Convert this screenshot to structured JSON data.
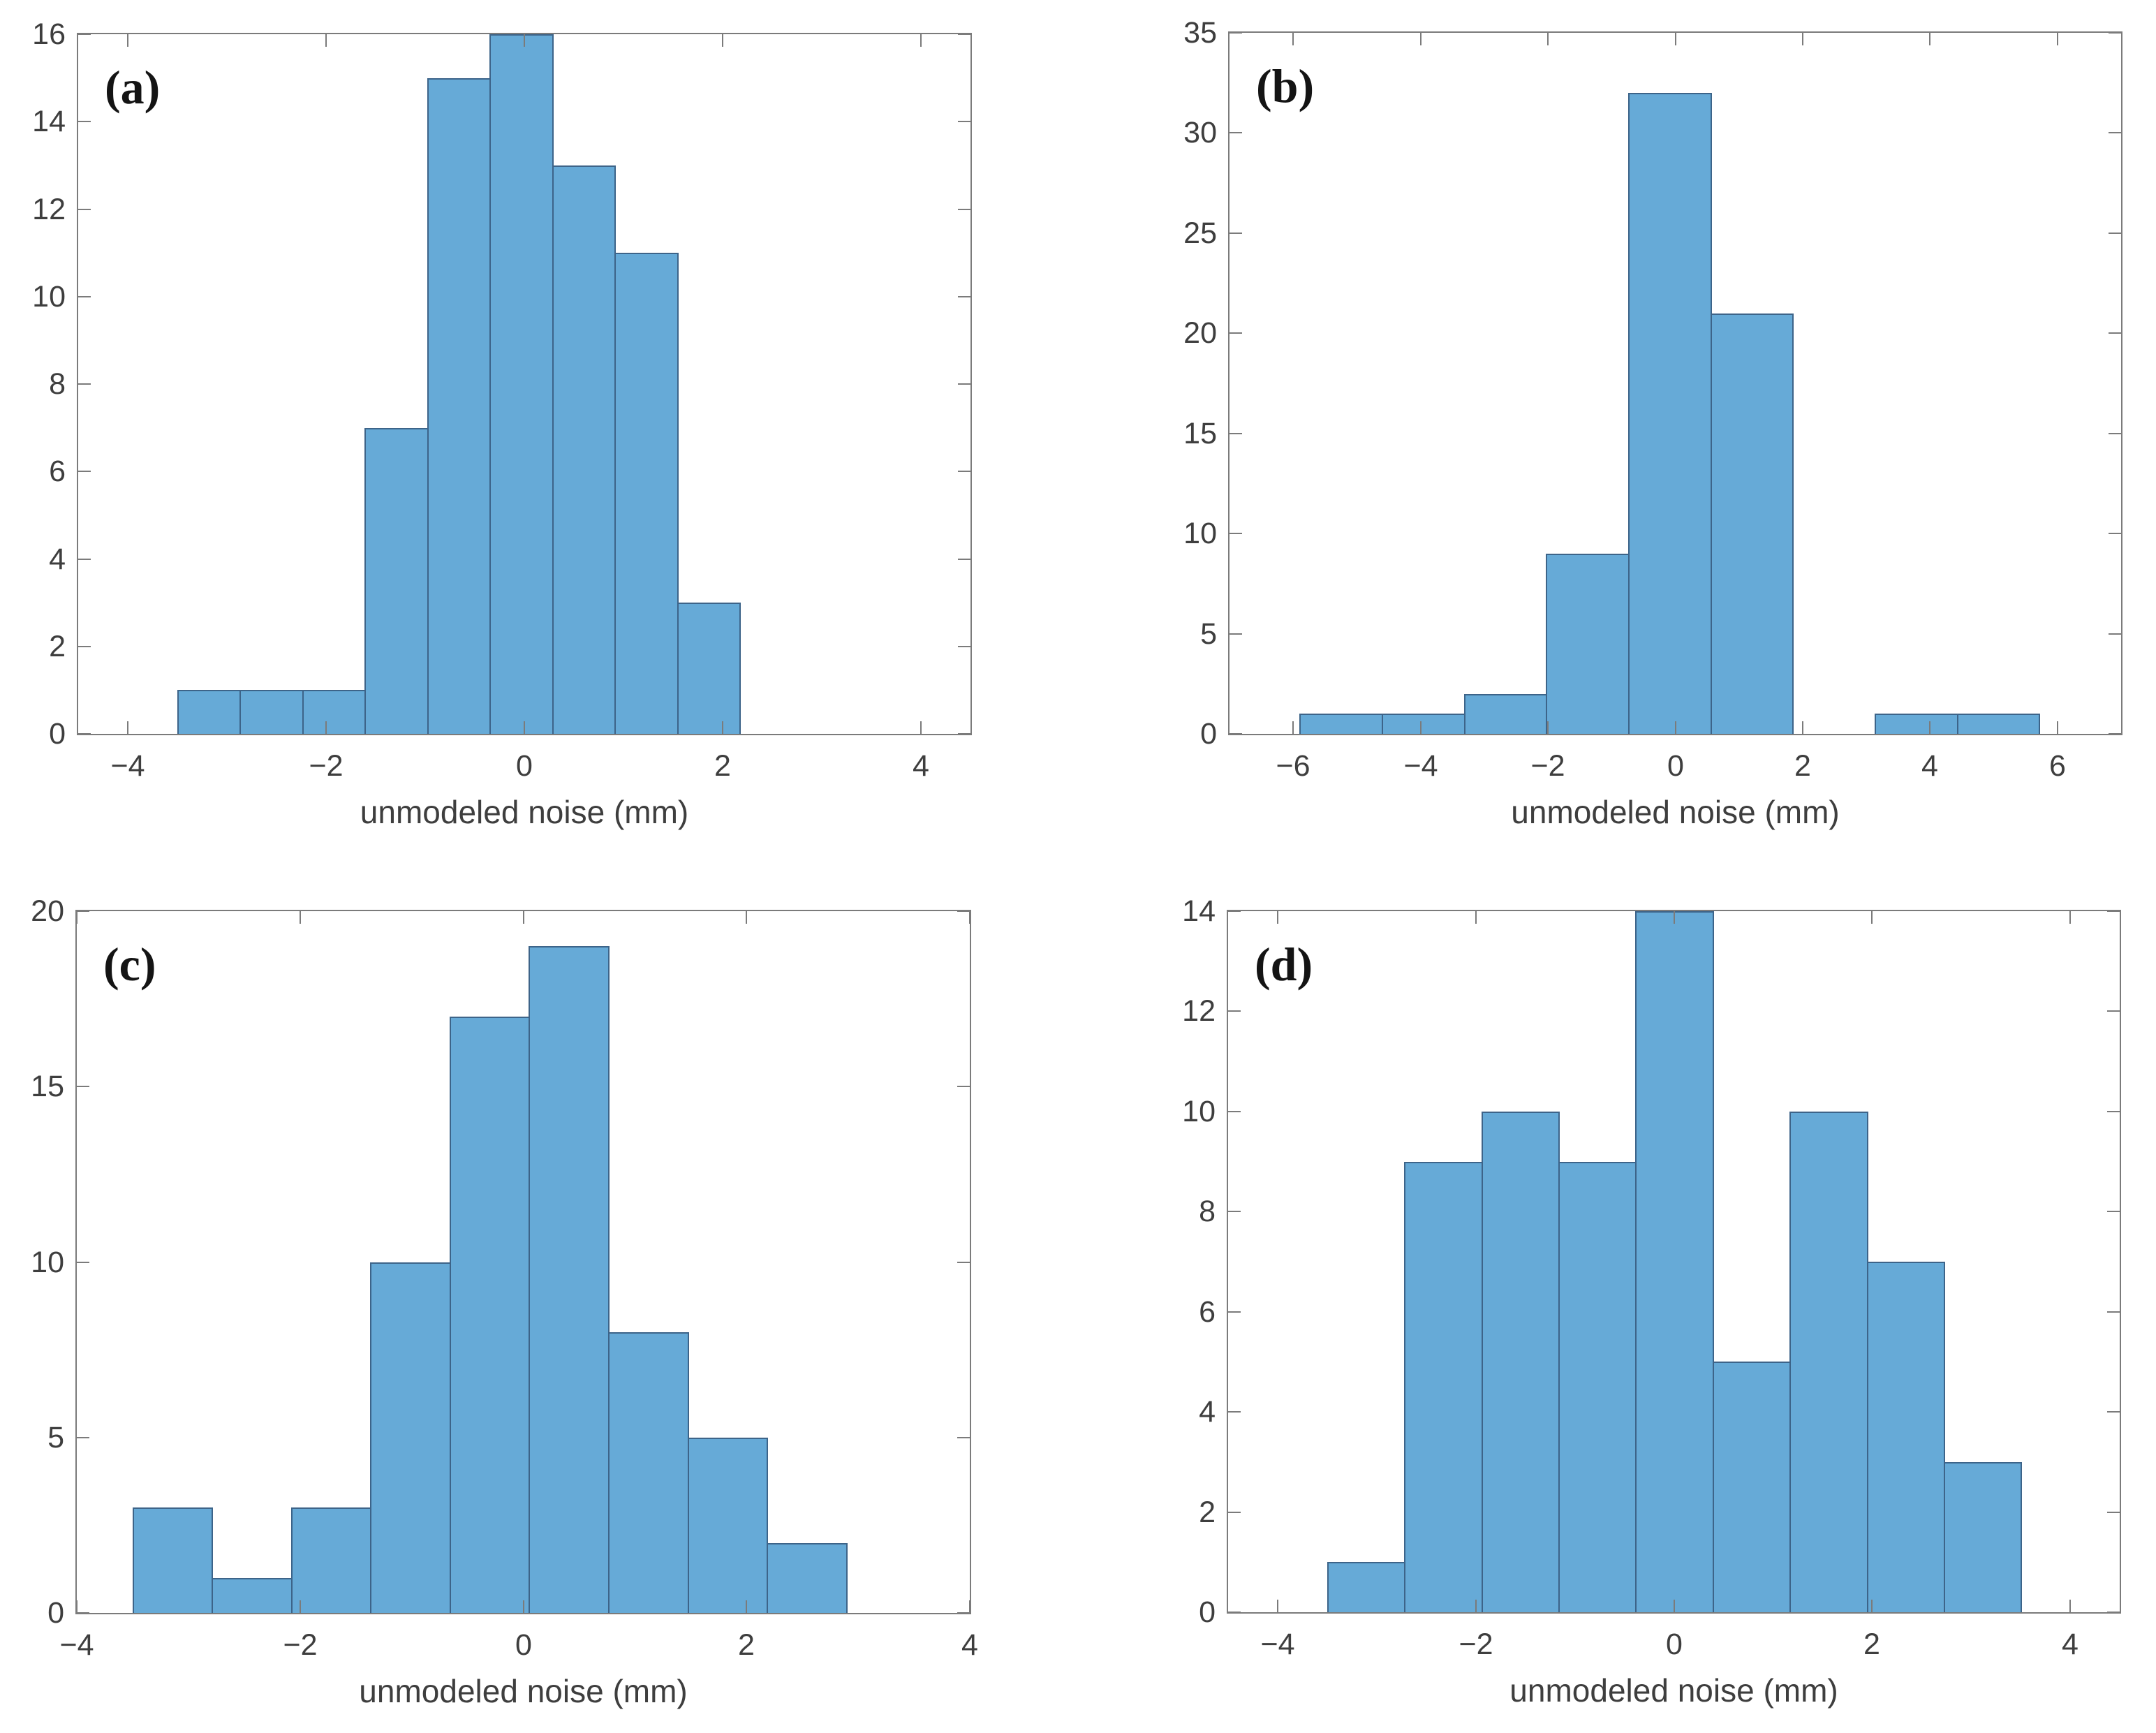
{
  "figure": {
    "xlabel": "unmodeled noise (mm)"
  },
  "colors": {
    "bar_fill": "#66AAD7",
    "bar_edge": "#3D6489",
    "axis_line": "#7B7B7B",
    "tick_label": "#3E3E3E",
    "panel_letter": "#141414",
    "background": "#FFFFFF"
  },
  "chart_data": [
    {
      "type": "bar",
      "panel_label": "(a)",
      "xlabel": "unmodeled noise (mm)",
      "ylabel": "",
      "bins": {
        "start": -3.5,
        "width": 0.63
      },
      "values": [
        1,
        1,
        1,
        7,
        15,
        16,
        13,
        11,
        3
      ],
      "xlim": [
        -4.5,
        4.5
      ],
      "ylim": [
        0,
        16
      ],
      "xticks": [
        -4,
        -2,
        0,
        2,
        4
      ],
      "yticks": [
        0,
        2,
        4,
        6,
        8,
        10,
        12,
        14,
        16
      ],
      "grid": false,
      "legend": null
    },
    {
      "type": "bar",
      "panel_label": "(b)",
      "xlabel": "unmodeled noise (mm)",
      "ylabel": "",
      "bins": {
        "start": -5.9,
        "width": 1.29
      },
      "values": [
        1,
        1,
        2,
        9,
        32,
        21,
        0,
        1,
        1
      ],
      "xlim": [
        -7,
        7
      ],
      "ylim": [
        0,
        35
      ],
      "xticks": [
        -6,
        -4,
        -2,
        0,
        2,
        4,
        6
      ],
      "yticks": [
        0,
        5,
        10,
        15,
        20,
        25,
        30,
        35
      ],
      "grid": false,
      "legend": null
    },
    {
      "type": "bar",
      "panel_label": "(c)",
      "xlabel": "unmodeled noise (mm)",
      "ylabel": "",
      "bins": {
        "start": -3.5,
        "width": 0.71
      },
      "values": [
        3,
        1,
        3,
        10,
        17,
        19,
        8,
        5,
        2
      ],
      "xlim": [
        -4,
        4
      ],
      "ylim": [
        0,
        20
      ],
      "xticks": [
        -4,
        -2,
        0,
        2,
        4
      ],
      "yticks": [
        0,
        5,
        10,
        15,
        20
      ],
      "grid": false,
      "legend": null
    },
    {
      "type": "bar",
      "panel_label": "(d)",
      "xlabel": "unmodeled noise (mm)",
      "ylabel": "",
      "bins": {
        "start": -3.5,
        "width": 0.778
      },
      "values": [
        1,
        9,
        10,
        9,
        14,
        5,
        10,
        7,
        3
      ],
      "xlim": [
        -4.5,
        4.5
      ],
      "ylim": [
        0,
        14
      ],
      "xticks": [
        -4,
        -2,
        0,
        2,
        4
      ],
      "yticks": [
        0,
        2,
        4,
        6,
        8,
        10,
        12,
        14
      ],
      "grid": false,
      "legend": null
    }
  ]
}
